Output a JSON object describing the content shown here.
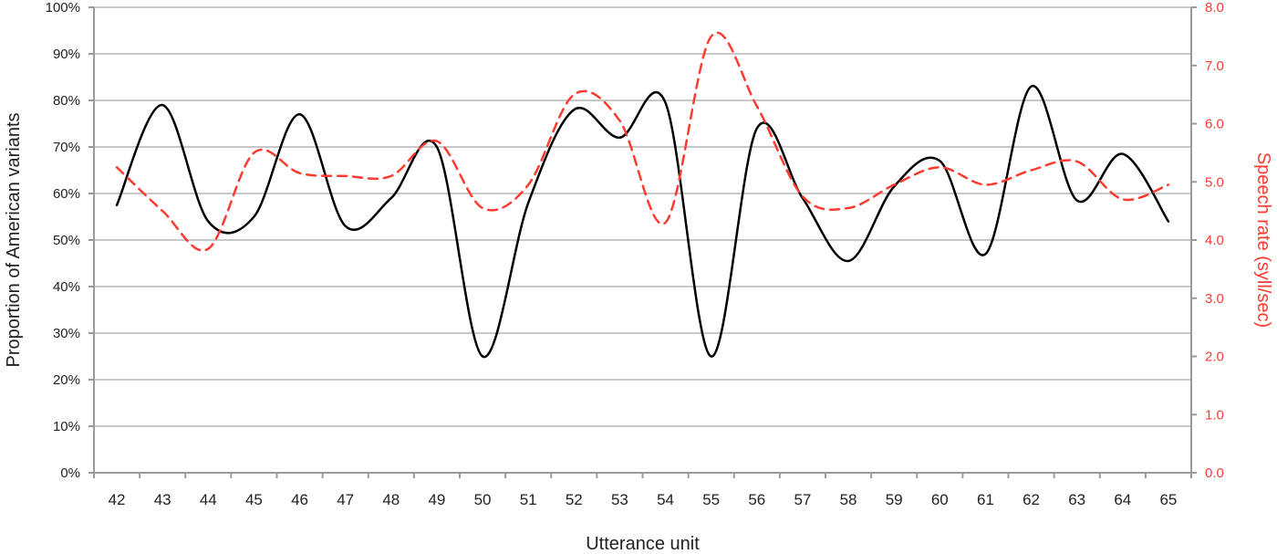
{
  "chart_data": {
    "type": "line",
    "title": "",
    "xlabel": "Utterance unit",
    "ylabel": "Proportion of American variants",
    "y2label": "Speech rate (syll/sec)",
    "categories": [
      "42",
      "43",
      "44",
      "45",
      "46",
      "47",
      "48",
      "49",
      "50",
      "51",
      "52",
      "53",
      "54",
      "55",
      "56",
      "57",
      "58",
      "59",
      "60",
      "61",
      "62",
      "63",
      "64",
      "65"
    ],
    "ylim": [
      0,
      100
    ],
    "y2lim": [
      0,
      8
    ],
    "y_tick_labels": [
      "0%",
      "10%",
      "20%",
      "30%",
      "40%",
      "50%",
      "60%",
      "70%",
      "80%",
      "90%",
      "100%"
    ],
    "y2_tick_labels": [
      "0.0",
      "1.0",
      "2.0",
      "3.0",
      "4.0",
      "5.0",
      "6.0",
      "7.0",
      "8.0"
    ],
    "grid": true,
    "legend": "none",
    "series": [
      {
        "axis": "left",
        "color": "#000000",
        "style": "solid",
        "values": [
          57.5,
          79,
          54,
          55,
          77,
          53,
          59,
          70,
          25,
          58,
          78,
          72,
          79.5,
          25,
          74,
          59,
          45.5,
          61.5,
          67,
          47,
          83,
          58.5,
          68.5,
          54
        ]
      },
      {
        "axis": "right",
        "color": "#ff3b30",
        "style": "dashed",
        "values": [
          5.25,
          4.5,
          3.85,
          5.5,
          5.15,
          5.1,
          5.1,
          5.7,
          4.55,
          4.95,
          6.5,
          6.05,
          4.3,
          7.5,
          6.3,
          4.75,
          4.55,
          4.95,
          5.25,
          4.95,
          5.2,
          5.35,
          4.7,
          4.95
        ]
      }
    ],
    "colors": {
      "grid": "#c8c8c8",
      "axis": "#9a9a9a",
      "right_axis": "#ff3b30"
    }
  }
}
